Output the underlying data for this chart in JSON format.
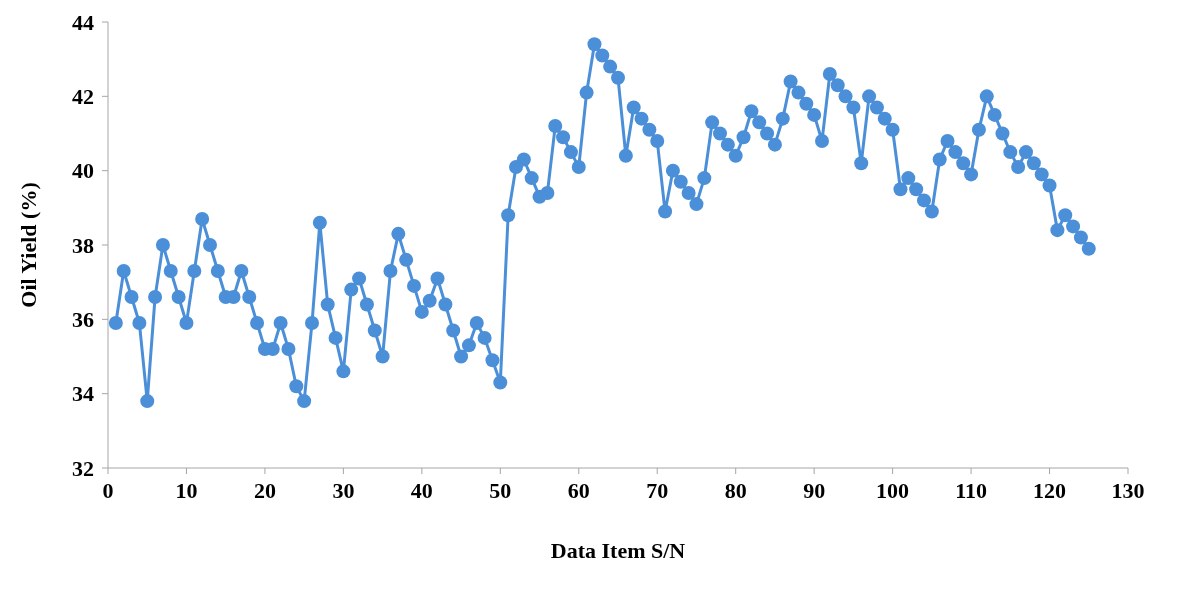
{
  "chart_data": {
    "type": "line",
    "xlabel": "Data Item S/N",
    "ylabel": "Oil Yield (%)",
    "x": [
      1,
      2,
      3,
      4,
      5,
      6,
      7,
      8,
      9,
      10,
      11,
      12,
      13,
      14,
      15,
      16,
      17,
      18,
      19,
      20,
      21,
      22,
      23,
      24,
      25,
      26,
      27,
      28,
      29,
      30,
      31,
      32,
      33,
      34,
      35,
      36,
      37,
      38,
      39,
      40,
      41,
      42,
      43,
      44,
      45,
      46,
      47,
      48,
      49,
      50,
      51,
      52,
      53,
      54,
      55,
      56,
      57,
      58,
      59,
      60,
      61,
      62,
      63,
      64,
      65,
      66,
      67,
      68,
      69,
      70,
      71,
      72,
      73,
      74,
      75,
      76,
      77,
      78,
      79,
      80,
      81,
      82,
      83,
      84,
      85,
      86,
      87,
      88,
      89,
      90,
      91,
      92,
      93,
      94,
      95,
      96,
      97,
      98,
      99,
      100,
      101,
      102,
      103,
      104,
      105,
      106,
      107,
      108,
      109,
      110,
      111,
      112,
      113,
      114,
      115,
      116,
      117,
      118,
      119,
      120,
      121,
      122,
      123,
      124,
      125
    ],
    "series": [
      {
        "color": "#4a8fd8",
        "values": [
          35.9,
          37.3,
          36.6,
          35.9,
          33.8,
          36.6,
          38.0,
          37.3,
          36.6,
          35.9,
          37.3,
          38.7,
          38.0,
          37.3,
          36.6,
          36.6,
          37.3,
          36.6,
          35.9,
          35.2,
          35.2,
          35.9,
          35.2,
          34.2,
          33.8,
          35.9,
          38.6,
          36.4,
          35.5,
          34.6,
          36.8,
          37.1,
          36.4,
          35.7,
          35.0,
          37.3,
          38.3,
          37.6,
          36.9,
          36.2,
          36.5,
          37.1,
          36.4,
          35.7,
          35.0,
          35.3,
          35.9,
          35.5,
          34.9,
          34.3,
          38.8,
          40.1,
          40.3,
          39.8,
          39.3,
          39.4,
          41.2,
          40.9,
          40.5,
          40.1,
          42.1,
          43.4,
          43.1,
          42.8,
          42.5,
          40.4,
          41.7,
          41.4,
          41.1,
          40.8,
          38.9,
          40.0,
          39.7,
          39.4,
          39.1,
          39.8,
          41.3,
          41.0,
          40.7,
          40.4,
          40.9,
          41.6,
          41.3,
          41.0,
          40.7,
          41.4,
          42.4,
          42.1,
          41.8,
          41.5,
          40.8,
          42.6,
          42.3,
          42.0,
          41.7,
          40.2,
          42.0,
          41.7,
          41.4,
          41.1,
          39.5,
          39.8,
          39.5,
          39.2,
          38.9,
          40.3,
          40.8,
          40.5,
          40.2,
          39.9,
          41.1,
          42.0,
          41.5,
          41.0,
          40.5,
          40.1,
          40.5,
          40.2,
          39.9,
          39.6,
          38.4,
          38.8,
          38.5,
          38.2,
          37.9
        ]
      }
    ],
    "xlim": [
      0,
      130
    ],
    "xticks": [
      0,
      10,
      20,
      30,
      40,
      50,
      60,
      70,
      80,
      90,
      100,
      110,
      120,
      130
    ],
    "ylim": [
      32,
      44
    ],
    "yticks": [
      32,
      34,
      36,
      38,
      40,
      42,
      44
    ],
    "grid": false,
    "marker": "circle",
    "line_style": "solid"
  }
}
